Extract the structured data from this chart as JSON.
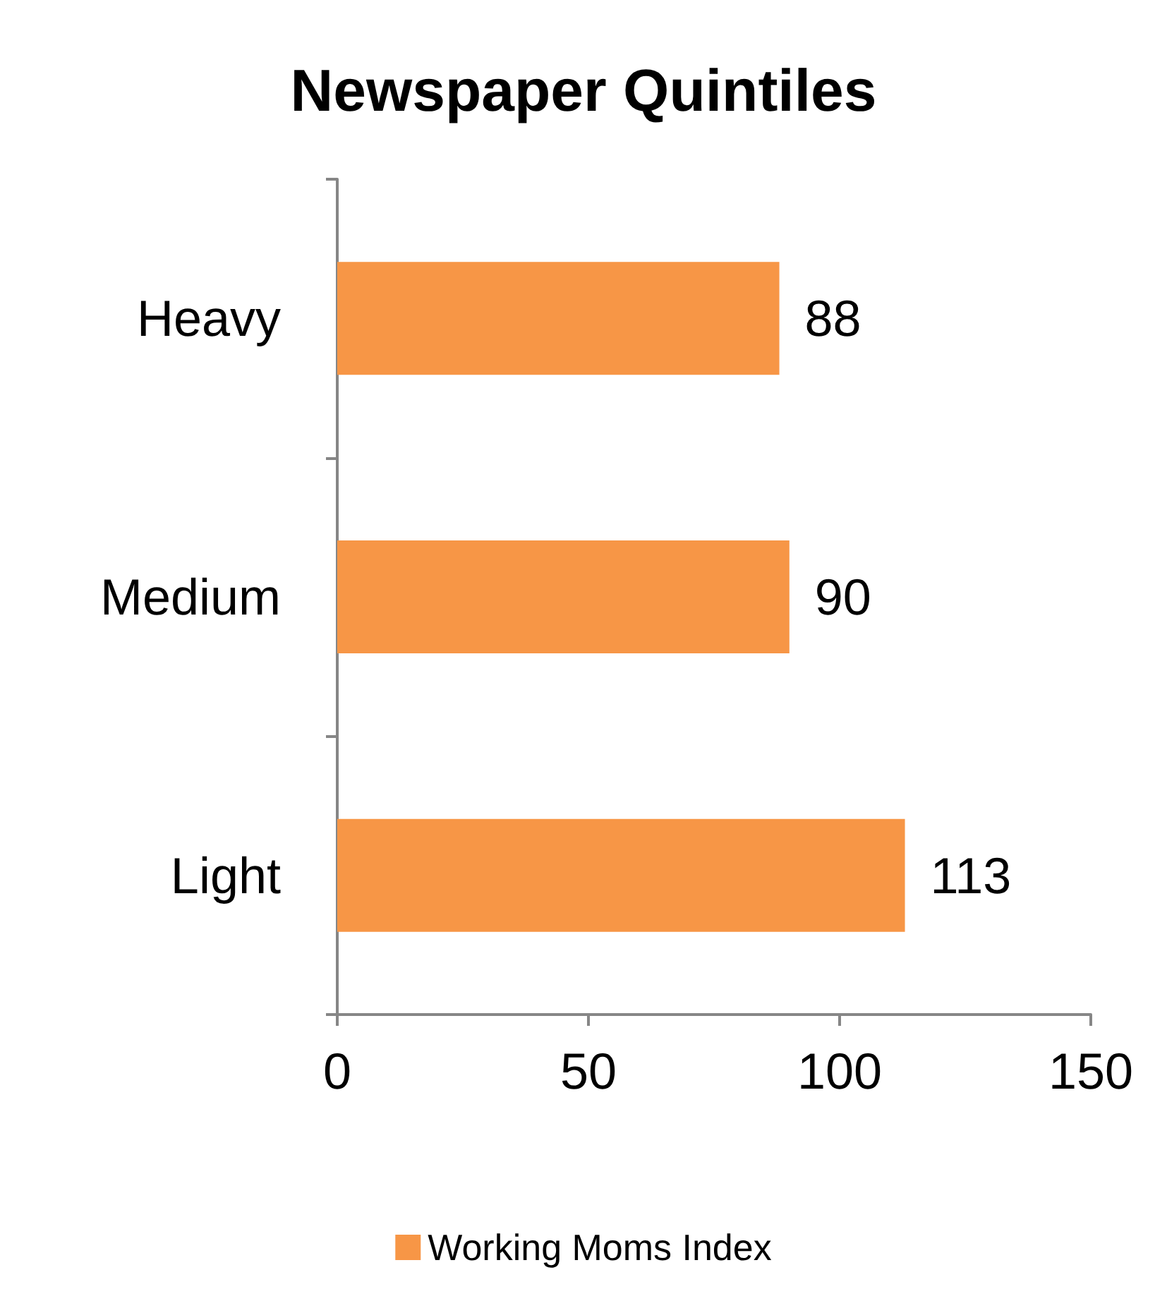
{
  "chart_data": {
    "type": "bar",
    "orientation": "horizontal",
    "title": "Newspaper Quintiles",
    "categories": [
      "Heavy",
      "Medium",
      "Light"
    ],
    "series": [
      {
        "name": "Working Moms Index",
        "color": "#f79646",
        "values": [
          88,
          90,
          113
        ]
      }
    ],
    "xlim": [
      0,
      150
    ],
    "xticks": [
      0,
      50,
      100,
      150
    ],
    "grid": false,
    "legend": "bottom",
    "data_labels": true
  }
}
